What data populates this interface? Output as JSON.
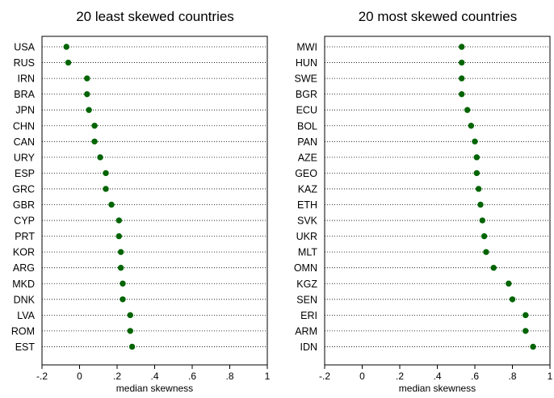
{
  "chart_data": [
    {
      "type": "dot",
      "title": "20 least skewed countries",
      "xlabel": "median skewness",
      "xlim": [
        -0.2,
        1.0
      ],
      "xticks": [
        -0.2,
        0,
        0.2,
        0.4,
        0.6,
        0.8,
        1.0
      ],
      "xtick_labels": [
        "-.2",
        "0",
        ".2",
        ".4",
        ".6",
        ".8",
        "1"
      ],
      "grid": "dotted",
      "color": "#006400",
      "categories": [
        "USA",
        "RUS",
        "IRN",
        "BRA",
        "JPN",
        "CHN",
        "CAN",
        "URY",
        "ESP",
        "GRC",
        "GBR",
        "CYP",
        "PRT",
        "KOR",
        "ARG",
        "MKD",
        "DNK",
        "LVA",
        "ROM",
        "EST"
      ],
      "values": [
        -0.07,
        -0.06,
        0.04,
        0.04,
        0.05,
        0.08,
        0.08,
        0.11,
        0.14,
        0.14,
        0.17,
        0.21,
        0.21,
        0.22,
        0.22,
        0.23,
        0.23,
        0.27,
        0.27,
        0.28
      ]
    },
    {
      "type": "dot",
      "title": "20 most skewed countries",
      "xlabel": "median skewness",
      "xlim": [
        -0.2,
        1.0
      ],
      "xticks": [
        -0.2,
        0,
        0.2,
        0.4,
        0.6,
        0.8,
        1.0
      ],
      "xtick_labels": [
        "-.2",
        "0",
        ".2",
        ".4",
        ".6",
        ".8",
        "1"
      ],
      "grid": "dotted",
      "color": "#006400",
      "categories": [
        "MWI",
        "HUN",
        "SWE",
        "BGR",
        "ECU",
        "BOL",
        "PAN",
        "AZE",
        "GEO",
        "KAZ",
        "ETH",
        "SVK",
        "UKR",
        "MLT",
        "OMN",
        "KGZ",
        "SEN",
        "ERI",
        "ARM",
        "IDN"
      ],
      "values": [
        0.53,
        0.53,
        0.53,
        0.53,
        0.56,
        0.58,
        0.6,
        0.61,
        0.61,
        0.62,
        0.63,
        0.64,
        0.65,
        0.66,
        0.7,
        0.78,
        0.8,
        0.87,
        0.87,
        0.91
      ]
    }
  ]
}
